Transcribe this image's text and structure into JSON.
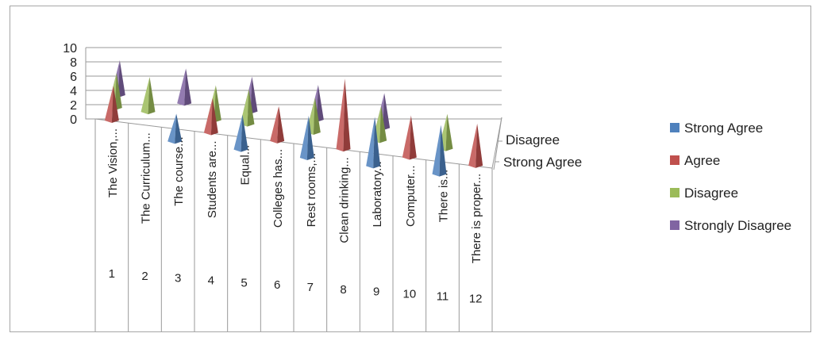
{
  "chart_data": {
    "type": "bar",
    "style": "3d-cone",
    "ylim": [
      0,
      10
    ],
    "y_ticks": [
      "0",
      "2",
      "4",
      "6",
      "8",
      "10"
    ],
    "categories": [
      {
        "number": "1",
        "label": "The Vision,..."
      },
      {
        "number": "2",
        "label": "The Curriculum..."
      },
      {
        "number": "3",
        "label": "The course..."
      },
      {
        "number": "4",
        "label": "Students are..."
      },
      {
        "number": "5",
        "label": "Equal..."
      },
      {
        "number": "6",
        "label": "Colleges has..."
      },
      {
        "number": "7",
        "label": "Rest rooms,..."
      },
      {
        "number": "8",
        "label": "Clean drinking..."
      },
      {
        "number": "9",
        "label": "Laboratory..."
      },
      {
        "number": "10",
        "label": "Computer..."
      },
      {
        "number": "11",
        "label": "There is..."
      },
      {
        "number": "12",
        "label": "There is proper..."
      }
    ],
    "depth_axis_labels": [
      "Disagree",
      "Strong Agree"
    ],
    "series": [
      {
        "name": "Strong Agree",
        "color": "#4F81BD",
        "values": [
          0,
          0,
          3,
          0,
          4,
          0,
          5,
          0,
          6,
          0,
          6,
          0
        ]
      },
      {
        "name": "Agree",
        "color": "#C0504D",
        "values": [
          4,
          0,
          0,
          4,
          0,
          4,
          0,
          9,
          0,
          5,
          0,
          5
        ]
      },
      {
        "name": "Disagree",
        "color": "#9BBB59",
        "values": [
          4,
          4,
          0,
          4,
          4,
          0,
          4,
          0,
          4,
          0,
          4,
          0
        ]
      },
      {
        "name": "Strongly Disagree",
        "color": "#8064A2",
        "values": [
          4,
          0,
          4,
          0,
          4,
          0,
          4,
          0,
          4,
          0,
          0,
          0
        ]
      }
    ],
    "legend_position": "right",
    "grid": true
  }
}
